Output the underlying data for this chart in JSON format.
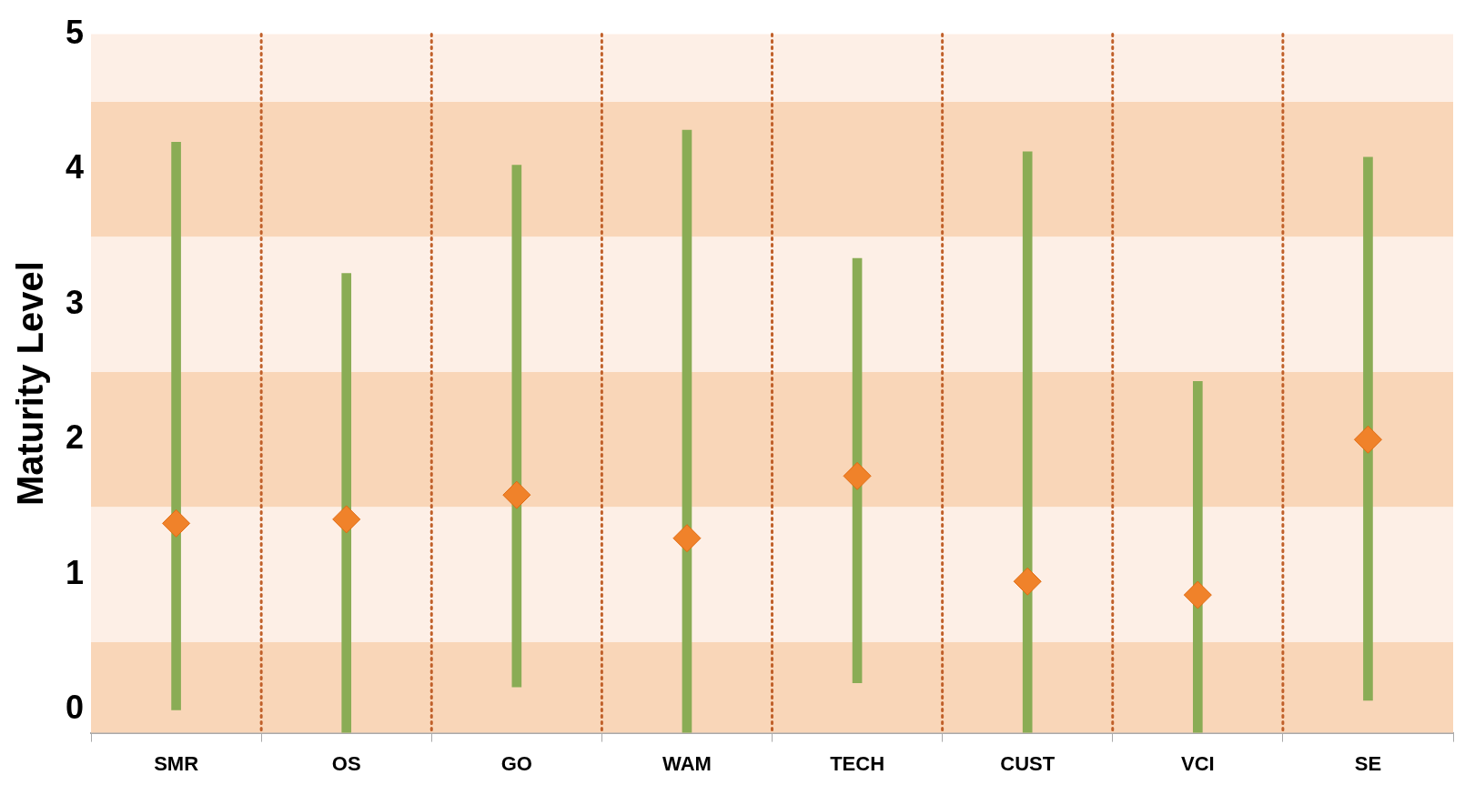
{
  "chart_data": {
    "type": "bar",
    "ylabel": "Maturity Level",
    "categories": [
      "SMR",
      "OS",
      "GO",
      "WAM",
      "TECH",
      "CUST",
      "VCI",
      "SE"
    ],
    "series": [
      {
        "color": "#8aac55",
        "base": [
          0,
          -0.17,
          0.17,
          -0.17,
          0.2,
          -0.17,
          -0.17,
          0.07
        ],
        "values": [
          4.2,
          3.4,
          3.86,
          4.46,
          3.14,
          4.3,
          2.6,
          4.02
        ]
      },
      {
        "type": "scatter",
        "color": "#f0822a",
        "marker": "diamond",
        "values": [
          1.38,
          1.41,
          1.59,
          1.27,
          1.73,
          0.95,
          0.85,
          2.0
        ]
      }
    ],
    "ylim": [
      -0.17,
      5
    ],
    "yticks": [
      0,
      1,
      2,
      3,
      4,
      5
    ],
    "grid": "x",
    "legend": false,
    "bands": [
      {
        "axis": "y",
        "from": 4.5,
        "to": 5,
        "color": "#fdefe6"
      },
      {
        "axis": "y",
        "from": 3.5,
        "to": 4.5,
        "color": "#f9d6b8"
      },
      {
        "axis": "y",
        "from": 2.5,
        "to": 3.5,
        "color": "#fdefe6"
      },
      {
        "axis": "y",
        "from": 1.5,
        "to": 2.5,
        "color": "#f9d6b8"
      },
      {
        "axis": "y",
        "from": 0.5,
        "to": 1.5,
        "color": "#fdefe6"
      },
      {
        "axis": "y",
        "from": -0.17,
        "to": 0.5,
        "color": "#f9d6b8"
      }
    ]
  }
}
